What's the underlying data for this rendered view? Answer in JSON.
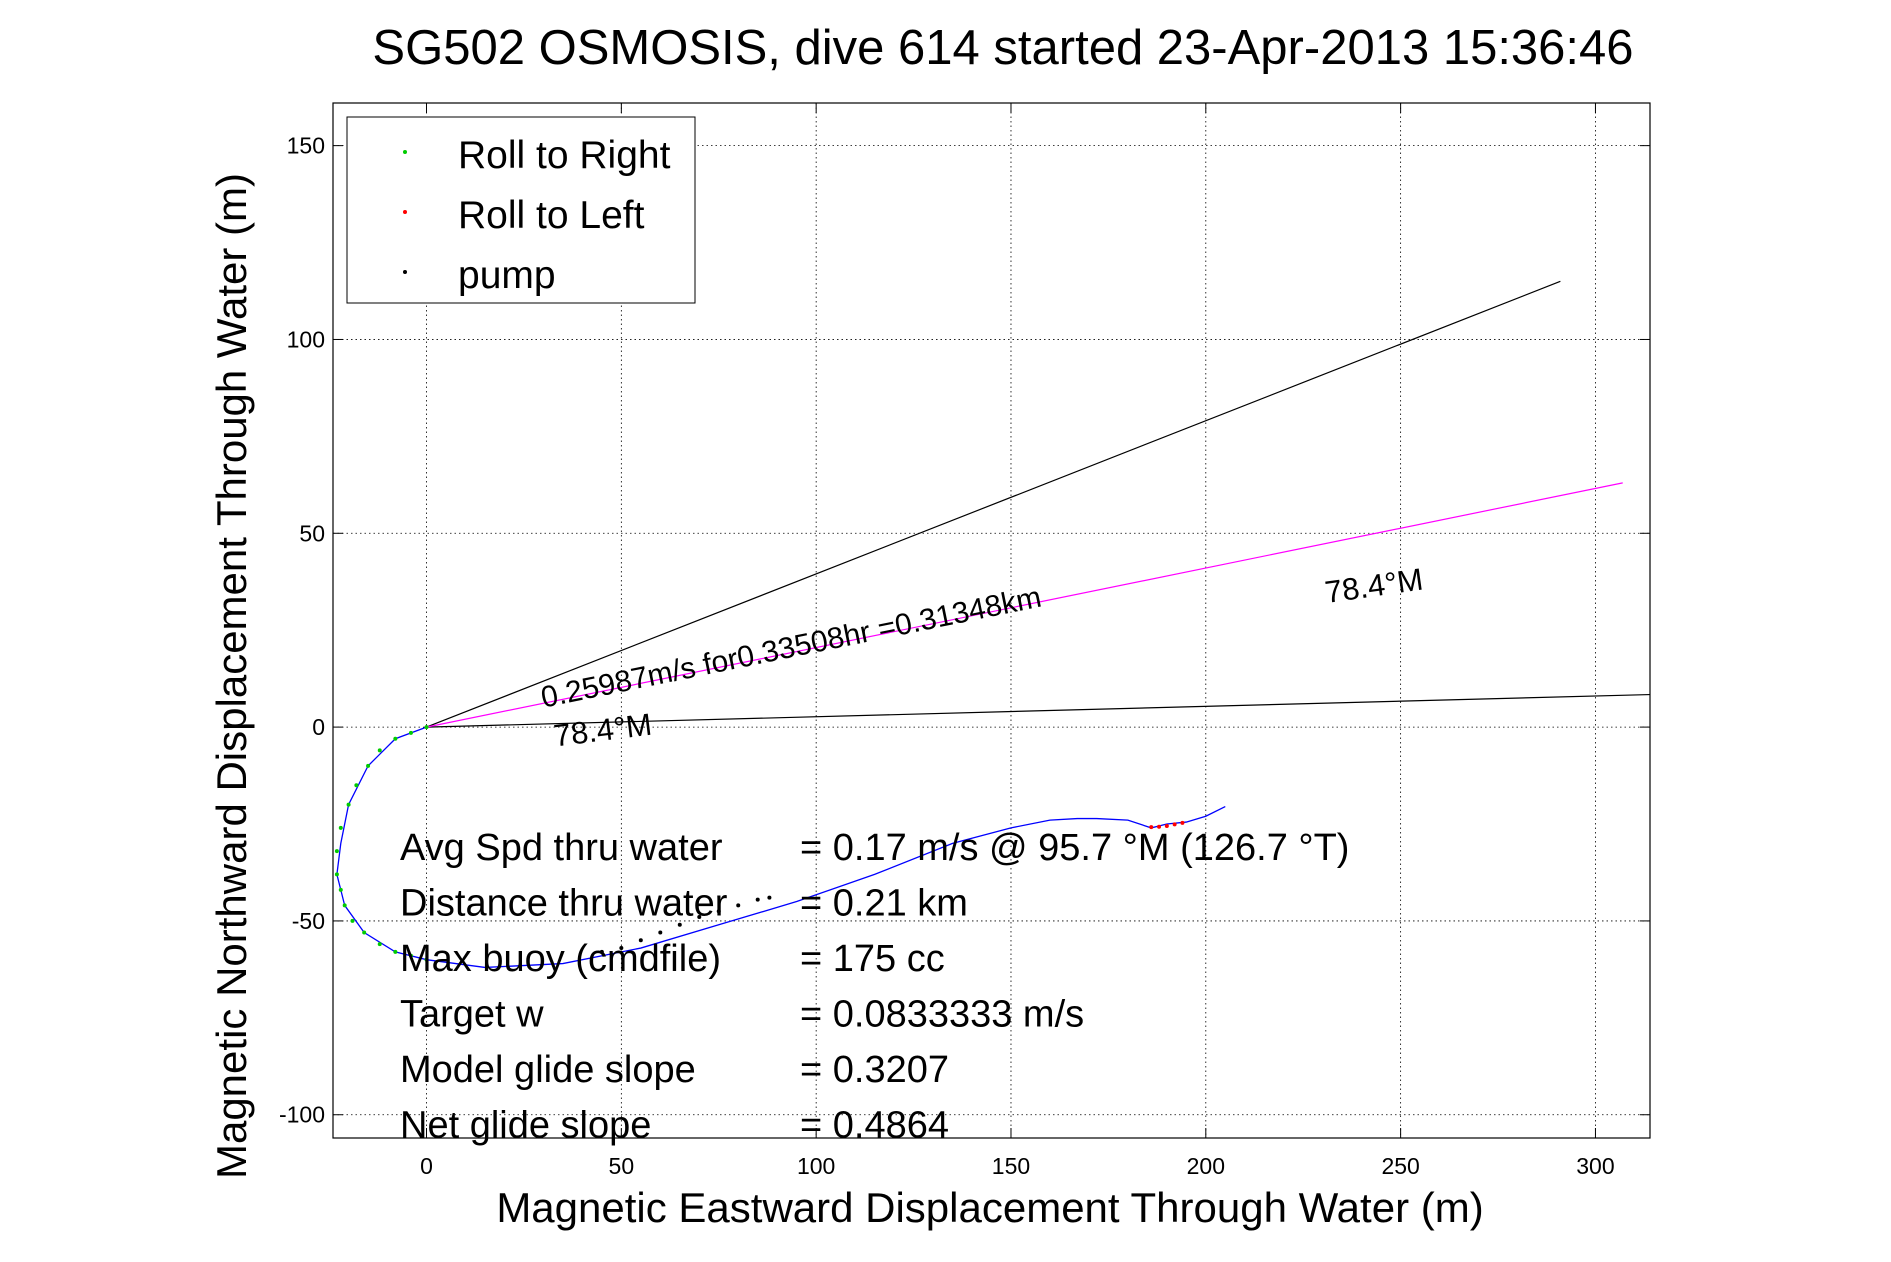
{
  "chart_data": {
    "type": "line",
    "title": "SG502 OSMOSIS, dive 614 started 23-Apr-2013 15:36:46",
    "xlabel": "Magnetic Eastward Displacement Through Water (m)",
    "ylabel": "Magnetic Northward Displacement Through Water (m)",
    "xlim": [
      -24,
      314
    ],
    "ylim": [
      -106,
      161
    ],
    "xticks": [
      0,
      50,
      100,
      150,
      200,
      250,
      300
    ],
    "yticks": [
      -100,
      -50,
      0,
      50,
      100,
      150
    ],
    "grid": true,
    "legend_position": "top-left",
    "legend": [
      {
        "label": "Roll to Right",
        "color": "#00cc00"
      },
      {
        "label": "Roll to Left",
        "color": "#ff0000"
      },
      {
        "label": "pump",
        "color": "#000000"
      }
    ],
    "series": [
      {
        "name": "track",
        "color": "#0000ff",
        "x": [
          0,
          -8,
          -15,
          -20,
          -22,
          -23,
          -21,
          -16,
          -8,
          0,
          15,
          35,
          55,
          75,
          95,
          115,
          135,
          150,
          160,
          167,
          172,
          180,
          186,
          190,
          195,
          200,
          205
        ],
        "y": [
          0,
          -3,
          -10,
          -20,
          -30,
          -38,
          -46,
          -53,
          -58,
          -60,
          -62,
          -61,
          -57,
          -51,
          -45,
          -38,
          -30,
          -26,
          -24,
          -23.6,
          -23.6,
          -24,
          -26,
          -25,
          -24.5,
          -23,
          -20.5
        ]
      },
      {
        "name": "Roll to Right",
        "color": "#00cc00",
        "x": [
          0,
          -4,
          -8,
          -12,
          -15,
          -18,
          -20,
          -22,
          -23,
          -23,
          -22,
          -21,
          -19,
          -16,
          -12,
          -8,
          -4,
          0
        ],
        "y": [
          0,
          -1.5,
          -3,
          -6,
          -10,
          -15,
          -20,
          -26,
          -32,
          -38,
          -42,
          -46,
          -50,
          -53,
          -56,
          -58,
          -59,
          -60
        ]
      },
      {
        "name": "pump",
        "color": "#000000",
        "x": [
          45,
          50,
          55,
          60,
          65,
          70,
          75,
          80,
          85,
          88
        ],
        "y": [
          -58,
          -57,
          -55,
          -53,
          -51,
          -49,
          -47.5,
          -46,
          -44.5,
          -44
        ]
      },
      {
        "name": "Roll to Left",
        "color": "#ff0000",
        "x": [
          186,
          188,
          190,
          192,
          194
        ],
        "y": [
          -25.8,
          -25.7,
          -25.5,
          -25.1,
          -24.7
        ]
      }
    ],
    "reference_lines": [
      {
        "name": "heading line",
        "color": "#000000",
        "x": [
          0,
          291
        ],
        "y": [
          0,
          115
        ]
      },
      {
        "name": "heading line",
        "color": "#000000",
        "x": [
          0,
          314
        ],
        "y": [
          0,
          8.4
        ]
      },
      {
        "name": "current vector",
        "color": "#ff00ff",
        "x": [
          0,
          307
        ],
        "y": [
          0,
          63
        ]
      }
    ],
    "annotations": [
      {
        "text": "0.25987m/s for0.33508hr =0.31348km",
        "x": 30,
        "y": 5,
        "rotate": -11.5,
        "size": 30
      },
      {
        "text": "78.4°M",
        "x": 231,
        "y": 32,
        "rotate": -8,
        "size": 31
      },
      {
        "text": "78.4°M",
        "x": 33,
        "y": -5,
        "rotate": -7,
        "size": 31
      }
    ],
    "stats": [
      {
        "label": "Avg Spd thru water",
        "value": "=  0.17 m/s @  95.7 °M (126.7 °T)"
      },
      {
        "label": "Distance thru water",
        "value": "=  0.21 km"
      },
      {
        "label": "Max buoy (cmdfile)",
        "value": "= 175 cc"
      },
      {
        "label": "Target w",
        "value": "= 0.0833333 m/s"
      },
      {
        "label": "Model glide slope",
        "value": "= 0.3207"
      },
      {
        "label": "Net glide slope",
        "value": "= 0.4864"
      }
    ]
  }
}
